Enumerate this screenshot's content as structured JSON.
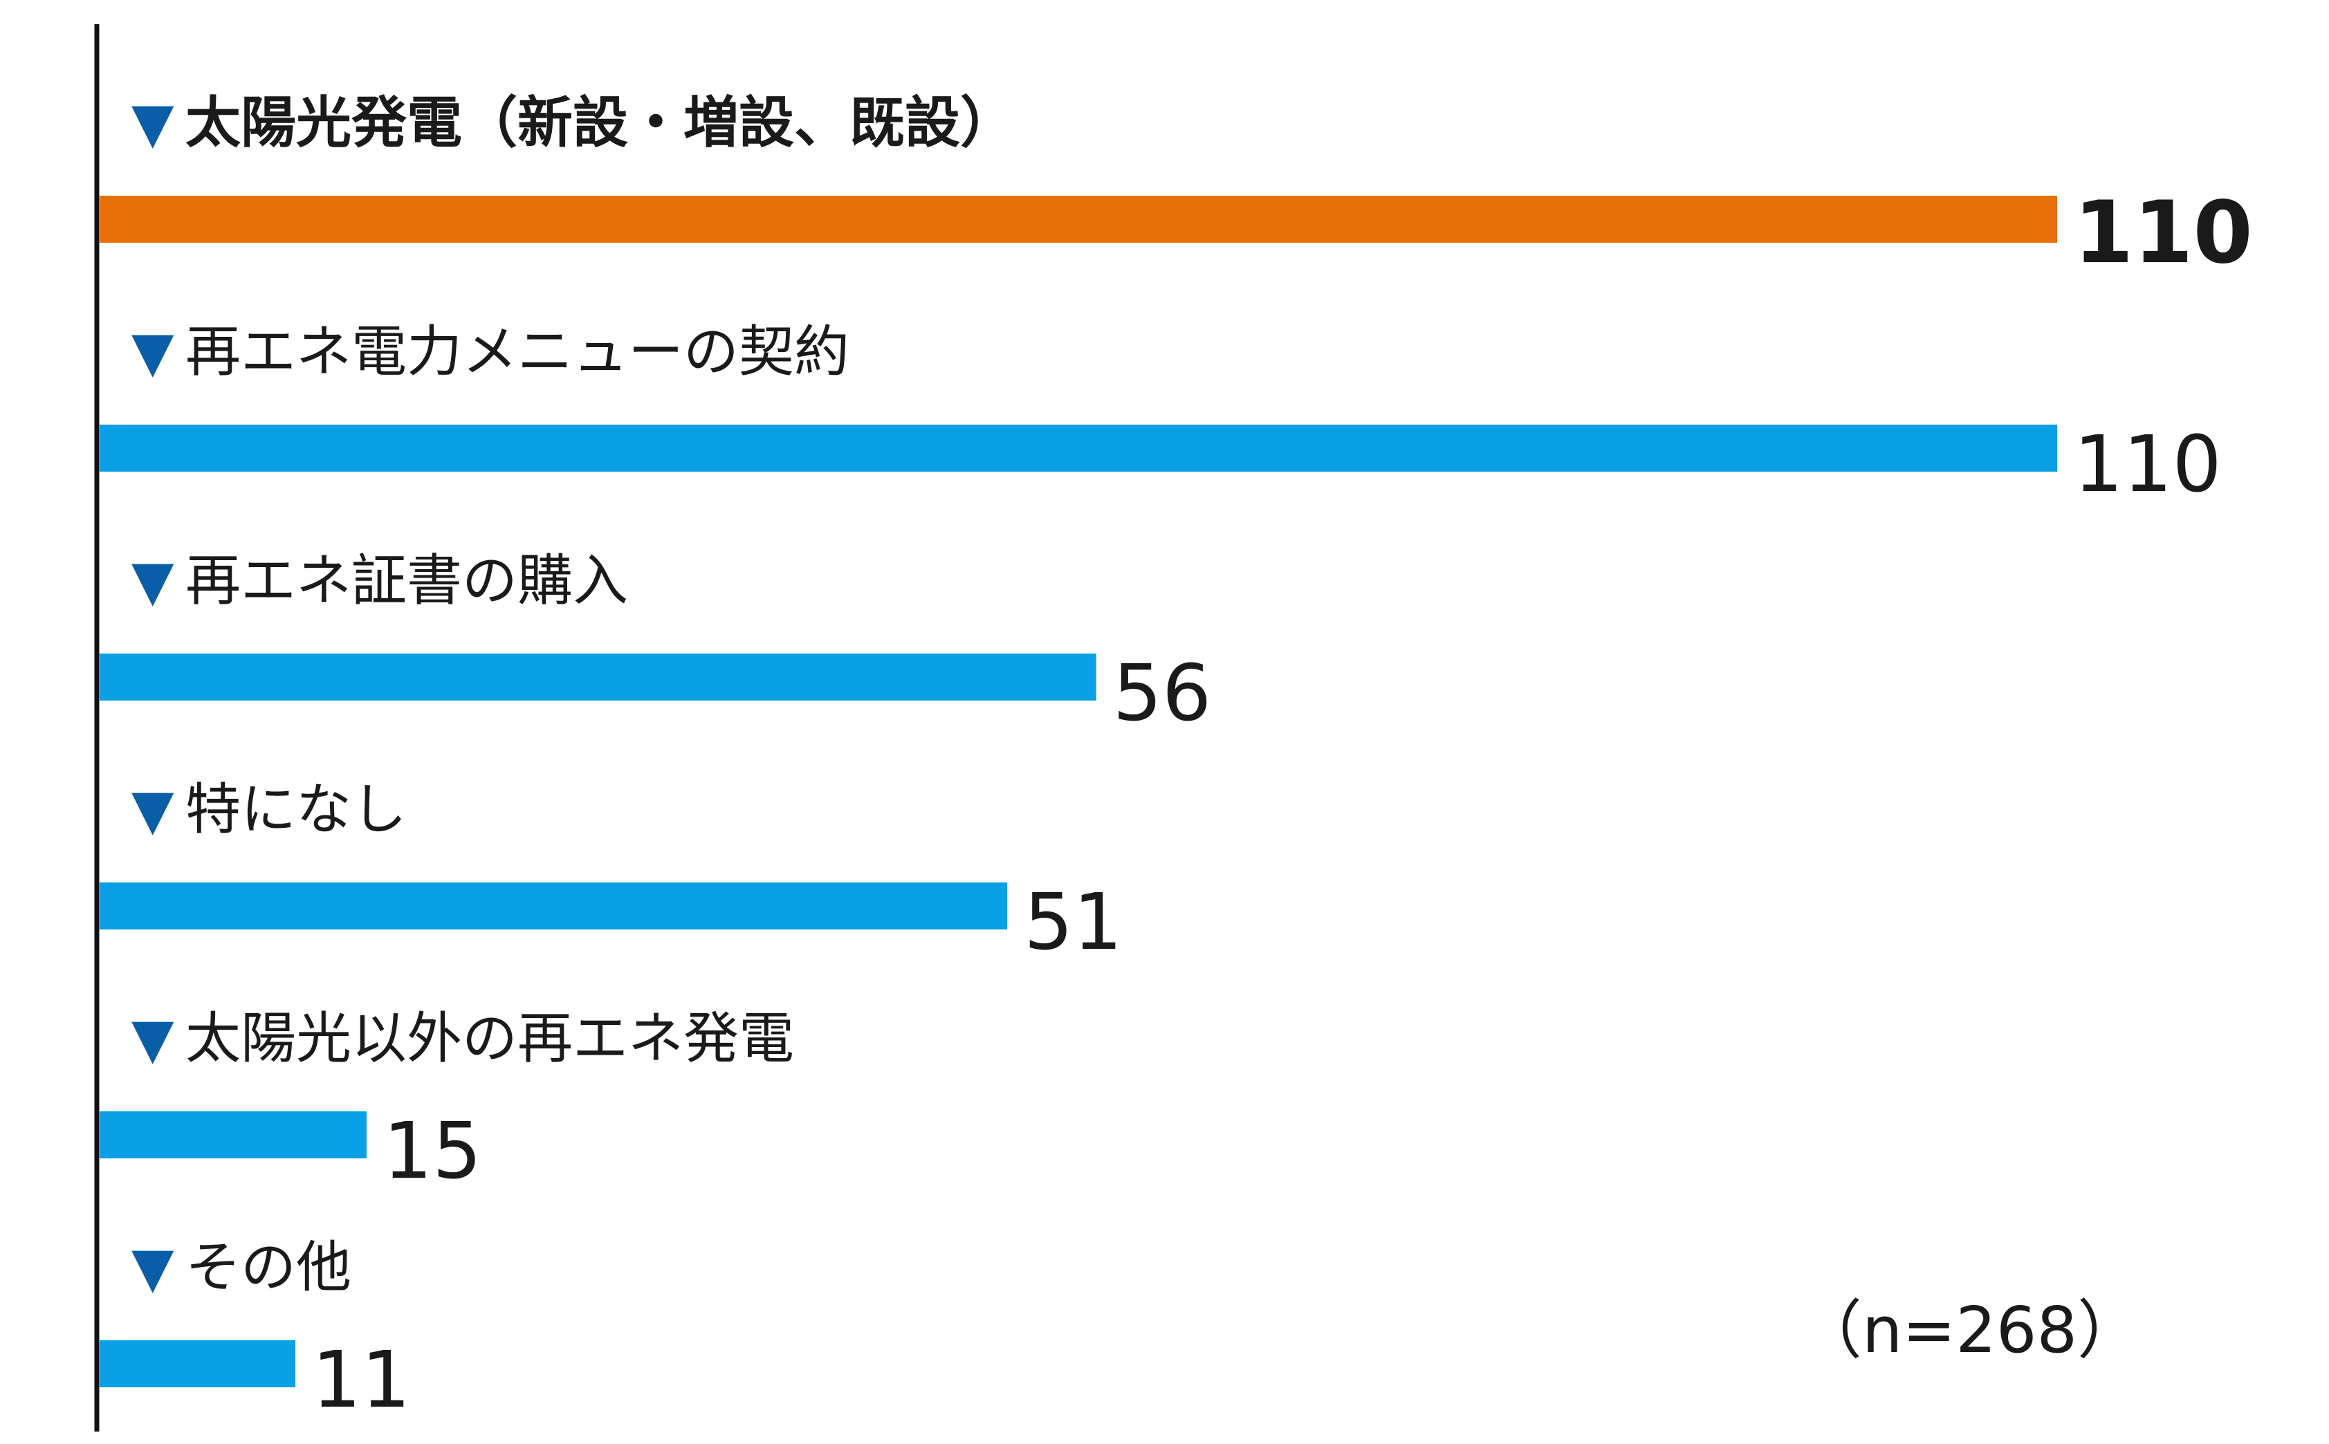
{
  "chart_data": {
    "type": "bar",
    "orientation": "horizontal",
    "categories": [
      "太陽光発電（新設・増設、既設）",
      "再エネ電力メニューの契約",
      "再エネ証書の購入",
      "特になし",
      "太陽光以外の再エネ発電",
      "その他"
    ],
    "values": [
      110,
      110,
      56,
      51,
      15,
      11
    ],
    "category_marker": "▼",
    "note": "（n=268）",
    "colors": {
      "highlight": "#e8700a",
      "default": "#0aa0e6",
      "marker": "#0a5ea8",
      "axis": "#111111"
    },
    "highlight_index": 0,
    "grid": false
  }
}
